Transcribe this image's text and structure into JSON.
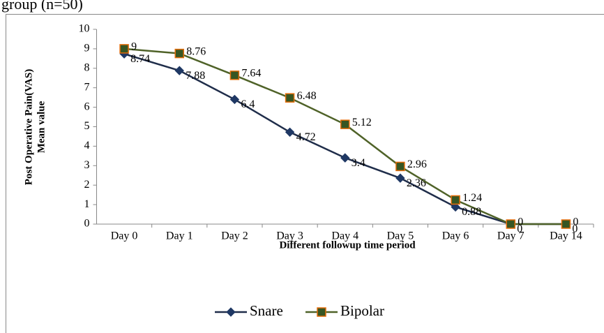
{
  "chart_data": {
    "type": "line",
    "caption": "group (n=50)",
    "x_label": "Different  followup time period",
    "y_label": [
      "Post Operative Pain(VAS)",
      "Mean value"
    ],
    "categories": [
      "Day 0",
      "Day 1",
      "Day 2",
      "Day 3",
      "Day 4",
      "Day 5",
      "Day 6",
      "Day 7",
      "Day 14"
    ],
    "series": [
      {
        "name": "Snare",
        "color": "#1f2d4a",
        "marker": "diamond",
        "values": [
          8.74,
          7.88,
          6.4,
          4.72,
          3.4,
          2.36,
          0.88,
          0,
          0
        ]
      },
      {
        "name": "Bipolar",
        "color": "#4f6228",
        "marker": "square",
        "values": [
          9,
          8.76,
          7.64,
          6.48,
          5.12,
          2.96,
          1.24,
          0,
          0
        ]
      }
    ],
    "ylim": [
      0,
      10
    ],
    "yticks": [
      0,
      1,
      2,
      3,
      4,
      5,
      6,
      7,
      8,
      9,
      10
    ],
    "legend": "bottom"
  }
}
